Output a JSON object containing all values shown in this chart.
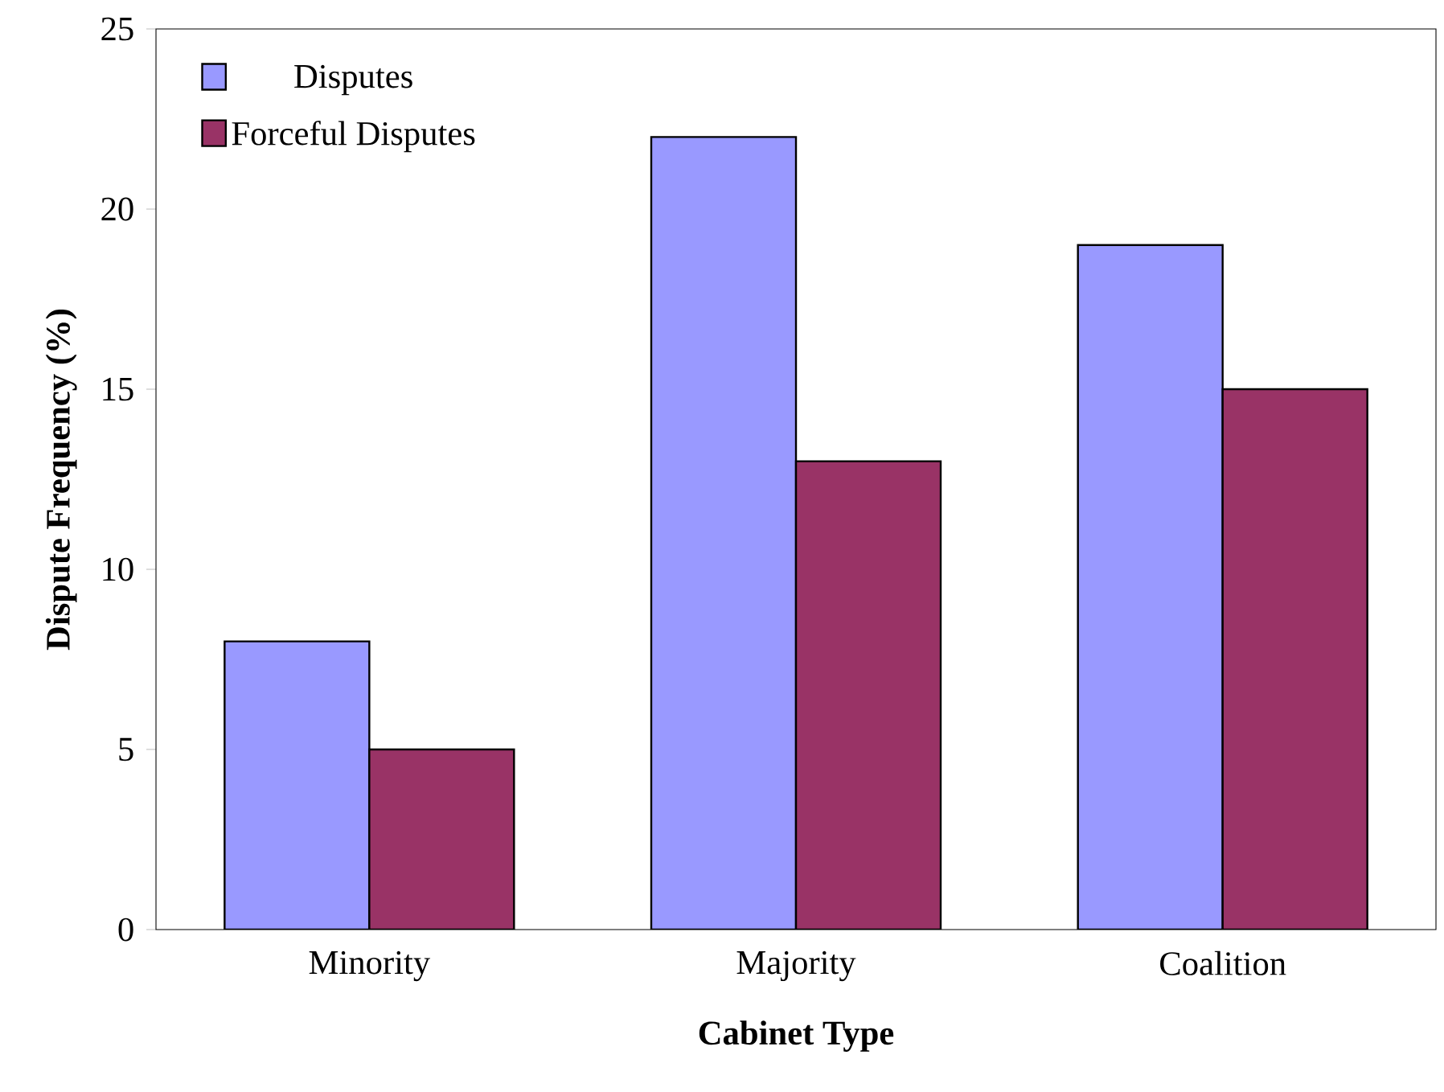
{
  "chart_data": {
    "type": "bar",
    "xlabel": "Cabinet Type",
    "ylabel": "Dispute Frequency (%)",
    "categories": [
      "Minority",
      "Majority",
      "Coalition"
    ],
    "series": [
      {
        "name": "Disputes",
        "color": "#9999ff",
        "values": [
          8,
          22,
          19
        ]
      },
      {
        "name": "Forceful Disputes",
        "color": "#993366",
        "values": [
          5,
          13,
          15
        ]
      }
    ],
    "ylim": [
      0,
      25
    ],
    "yticks": [
      0,
      5,
      10,
      15,
      20,
      25
    ],
    "grid": false,
    "legend": "top left"
  }
}
